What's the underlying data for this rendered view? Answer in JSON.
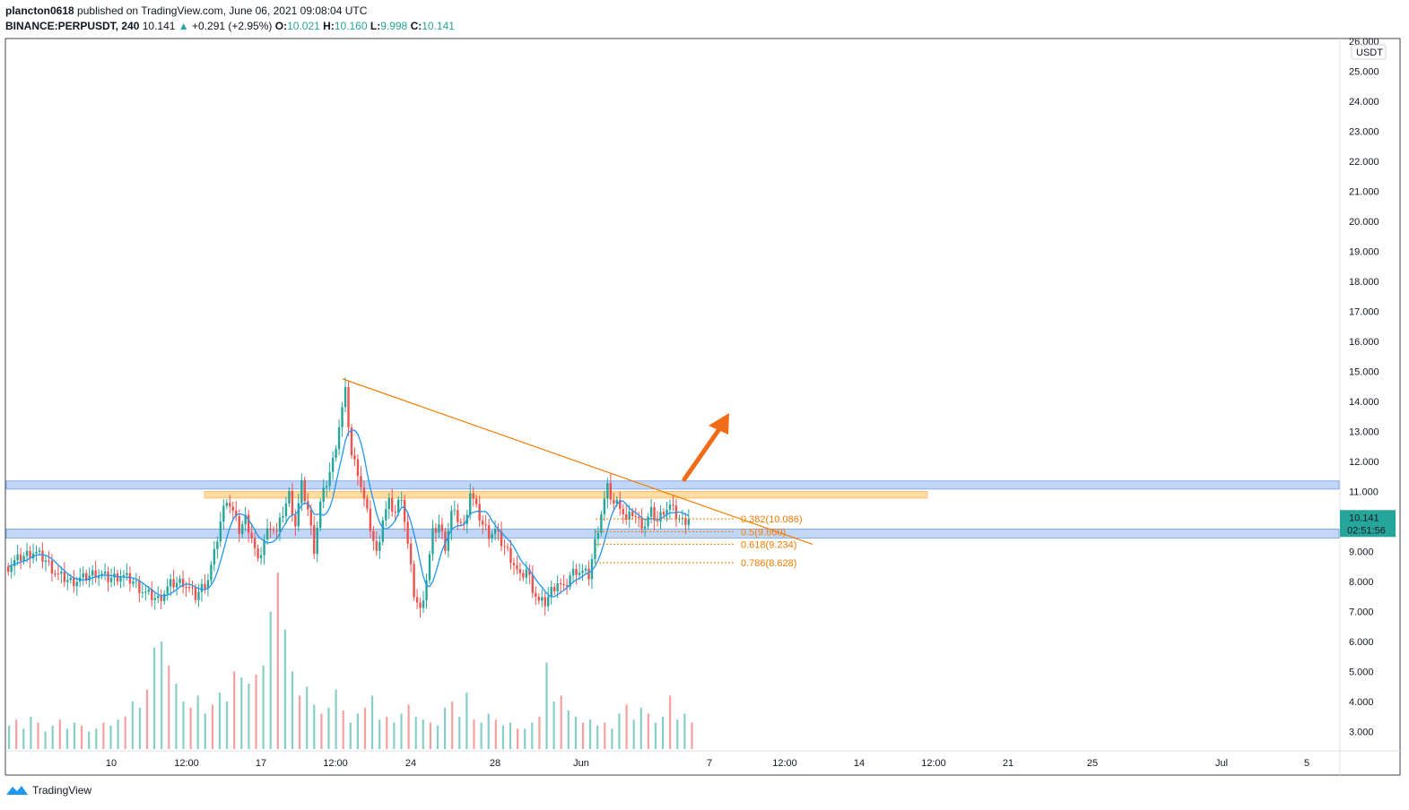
{
  "header": {
    "author": "plancton0618",
    "published_text": "published on TradingView.com, June 06, 2021 09:08:04 UTC",
    "symbol": "BINANCE:PERPUSDT, 240",
    "last": "10.141",
    "change": "+0.291 (+2.95%)",
    "open_label": "O:",
    "open": "10.021",
    "high_label": "H:",
    "high": "10.160",
    "low_label": "L:",
    "low": "9.998",
    "close_label": "C:",
    "close": "10.141"
  },
  "chart_data": {
    "type": "candlestick",
    "currency": "USDT",
    "ylim": [
      2.5,
      26.0
    ],
    "y_ticks": [
      "26.000",
      "25.000",
      "24.000",
      "23.000",
      "22.000",
      "21.000",
      "20.000",
      "19.000",
      "18.000",
      "17.000",
      "16.000",
      "15.000",
      "14.000",
      "13.000",
      "12.000",
      "11.000",
      "10.000",
      "9.000",
      "8.000",
      "7.000",
      "6.000",
      "5.000",
      "4.000",
      "3.000"
    ],
    "x_ticks": [
      "10",
      "12:00",
      "17",
      "12:00",
      "24",
      "28",
      "Jun",
      "7",
      "12:00",
      "14",
      "12:00",
      "21",
      "25",
      "Jul",
      "5"
    ],
    "last_price_label": "10.141",
    "countdown_label": "02:51:56",
    "close_path": [
      [
        0,
        8.5
      ],
      [
        4,
        8.8
      ],
      [
        8,
        9.0
      ],
      [
        12,
        8.7
      ],
      [
        16,
        8.2
      ],
      [
        20,
        8.0
      ],
      [
        24,
        8.1
      ],
      [
        28,
        8.3
      ],
      [
        32,
        8.1
      ],
      [
        36,
        8.2
      ],
      [
        40,
        8.0
      ],
      [
        44,
        7.6
      ],
      [
        48,
        7.4
      ],
      [
        52,
        7.9
      ],
      [
        56,
        8.0
      ],
      [
        60,
        7.5
      ],
      [
        64,
        8.1
      ],
      [
        66,
        8.9
      ],
      [
        68,
        10.0
      ],
      [
        70,
        10.8
      ],
      [
        72,
        10.3
      ],
      [
        74,
        9.7
      ],
      [
        76,
        10.1
      ],
      [
        78,
        9.5
      ],
      [
        80,
        8.6
      ],
      [
        82,
        9.4
      ],
      [
        84,
        9.9
      ],
      [
        86,
        9.6
      ],
      [
        88,
        10.3
      ],
      [
        90,
        10.9
      ],
      [
        92,
        9.9
      ],
      [
        94,
        11.2
      ],
      [
        96,
        10.4
      ],
      [
        98,
        9.1
      ],
      [
        100,
        10.6
      ],
      [
        102,
        11.3
      ],
      [
        104,
        12.0
      ],
      [
        106,
        13.2
      ],
      [
        108,
        14.3
      ],
      [
        110,
        12.2
      ],
      [
        112,
        11.7
      ],
      [
        114,
        10.7
      ],
      [
        116,
        9.8
      ],
      [
        118,
        8.9
      ],
      [
        120,
        10.1
      ],
      [
        122,
        10.6
      ],
      [
        124,
        10.3
      ],
      [
        126,
        10.9
      ],
      [
        128,
        9.2
      ],
      [
        130,
        7.6
      ],
      [
        132,
        7.0
      ],
      [
        134,
        8.1
      ],
      [
        136,
        9.6
      ],
      [
        138,
        9.9
      ],
      [
        140,
        9.2
      ],
      [
        142,
        10.3
      ],
      [
        144,
        10.1
      ],
      [
        146,
        9.8
      ],
      [
        148,
        11.0
      ],
      [
        150,
        10.4
      ],
      [
        152,
        9.9
      ],
      [
        154,
        9.6
      ],
      [
        156,
        9.7
      ],
      [
        158,
        9.3
      ],
      [
        160,
        9.0
      ],
      [
        162,
        8.6
      ],
      [
        164,
        8.1
      ],
      [
        166,
        8.4
      ],
      [
        168,
        7.8
      ],
      [
        170,
        7.3
      ],
      [
        172,
        7.3
      ],
      [
        174,
        7.7
      ],
      [
        176,
        8.0
      ],
      [
        178,
        7.7
      ],
      [
        180,
        8.2
      ],
      [
        182,
        8.4
      ],
      [
        184,
        8.3
      ],
      [
        186,
        8.2
      ],
      [
        188,
        9.3
      ],
      [
        190,
        10.3
      ],
      [
        192,
        11.1
      ],
      [
        194,
        10.6
      ],
      [
        196,
        10.6
      ],
      [
        198,
        10.0
      ],
      [
        200,
        10.3
      ],
      [
        202,
        10.0
      ],
      [
        204,
        9.9
      ],
      [
        206,
        10.3
      ],
      [
        208,
        10.0
      ],
      [
        210,
        10.4
      ],
      [
        212,
        10.5
      ],
      [
        214,
        10.2
      ],
      [
        216,
        10.0
      ],
      [
        218,
        10.141
      ]
    ],
    "volume_bars": [
      3.2,
      3.4,
      3.1,
      3.5,
      3.3,
      3.0,
      3.2,
      3.4,
      3.1,
      3.3,
      3.2,
      3.0,
      3.1,
      3.3,
      3.2,
      3.4,
      3.5,
      4.0,
      3.8,
      4.4,
      5.8,
      6.0,
      5.2,
      4.6,
      4.0,
      3.8,
      4.2,
      3.6,
      3.9,
      4.3,
      4.0,
      5.0,
      4.8,
      4.6,
      4.9,
      5.2,
      7.0,
      8.3,
      6.4,
      5.0,
      4.2,
      4.5,
      3.9,
      3.6,
      3.8,
      4.4,
      3.7,
      3.3,
      3.6,
      3.8,
      4.2,
      3.4,
      3.5,
      3.3,
      3.6,
      3.9,
      3.5,
      3.4,
      3.3,
      3.2,
      3.8,
      4.0,
      3.5,
      4.3,
      3.4,
      3.3,
      3.6,
      3.4,
      3.2,
      3.3,
      3.1,
      3.1,
      3.3,
      3.5,
      5.3,
      4.0,
      4.2,
      3.7,
      3.5,
      3.3,
      3.4,
      3.2,
      3.3,
      3.1,
      3.6,
      3.9,
      3.4,
      3.8,
      3.6,
      3.3,
      3.5,
      4.2,
      3.4,
      3.6,
      3.3
    ],
    "annotations": {
      "fib_levels": [
        {
          "label": "0.382(10.086)",
          "value": 10.086
        },
        {
          "label": "0.5(9.660)",
          "value": 9.66
        },
        {
          "label": "0.618(9.234)",
          "value": 9.234
        },
        {
          "label": "0.786(8.628)",
          "value": 8.628
        }
      ],
      "resistance_zone": [
        11.08,
        11.35
      ],
      "support_zone": [
        9.45,
        9.75
      ],
      "orange_zone": [
        10.78,
        11.0
      ],
      "trendline_from": [
        14.75
      ],
      "trendline_to": [
        9.24
      ]
    }
  },
  "footer": {
    "brand": "TradingView"
  },
  "colors": {
    "up": "#26a69a",
    "down": "#ef5350",
    "ma": "#2196f3",
    "fib": "#f57c00",
    "zone_blue": "#90b7f0",
    "zone_orange": "#ffcc80",
    "arrow": "#f26b17",
    "last_price_bg": "#26a69a"
  }
}
